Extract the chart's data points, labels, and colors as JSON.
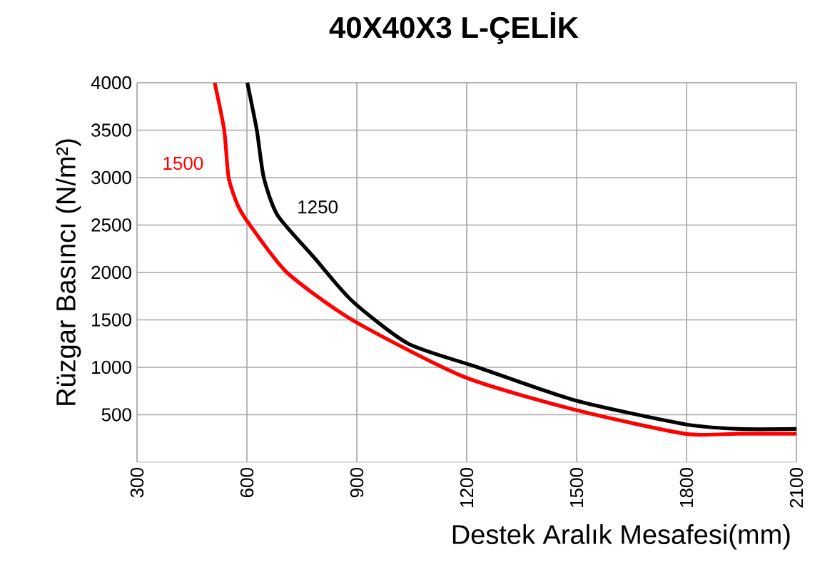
{
  "chart_data": {
    "type": "line",
    "title": "40X40X3 L-ÇELİK",
    "xlabel": "Destek Aralık Mesafesi(mm)",
    "ylabel": "Rüzgar Basıncı (N/m²)",
    "xlim": [
      300,
      2100
    ],
    "xticks": [
      300,
      600,
      900,
      1200,
      1500,
      1800,
      2100
    ],
    "ylim": [
      0,
      4000
    ],
    "yticks": [
      500,
      1000,
      1500,
      2000,
      2500,
      3000,
      3500,
      4000
    ],
    "grid": true,
    "marker": "none",
    "line_style": "solid",
    "series": [
      {
        "name": "1500",
        "color": "#ff0000",
        "x": [
          512,
          538,
          550,
          576,
          608,
          709,
          887,
          1192,
          1497,
          1795,
          1942,
          2100
        ],
        "values": [
          4000,
          3500,
          3000,
          2700,
          2500,
          2000,
          1500,
          900,
          550,
          300,
          300,
          300
        ]
      },
      {
        "name": "1250",
        "color": "#000000",
        "x": [
          601,
          627,
          646,
          684,
          785,
          887,
          1040,
          1230,
          1497,
          1795,
          1942,
          2100
        ],
        "values": [
          4000,
          3500,
          3000,
          2600,
          2150,
          1700,
          1250,
          1000,
          650,
          400,
          350,
          350
        ]
      }
    ]
  }
}
